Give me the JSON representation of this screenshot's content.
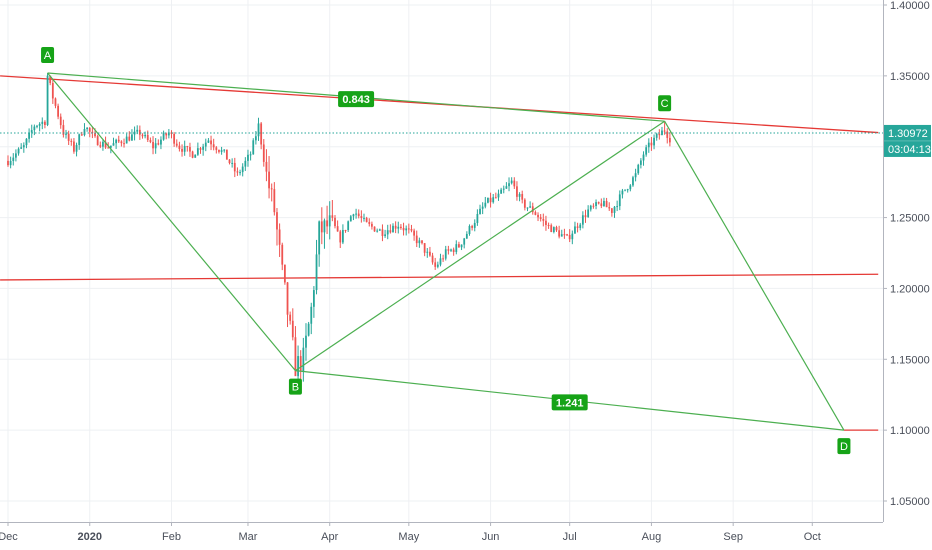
{
  "chart_data": {
    "type": "candlestick",
    "title": "",
    "ylim": [
      1.02,
      1.4
    ],
    "y_ticks": [
      {
        "value": 1.4,
        "label": "1.40000"
      },
      {
        "value": 1.35,
        "label": "1.35000"
      },
      {
        "value": 1.25,
        "label": "1.25000"
      },
      {
        "value": 1.2,
        "label": "1.20000"
      },
      {
        "value": 1.15,
        "label": "1.15000"
      },
      {
        "value": 1.1,
        "label": "1.10000"
      },
      {
        "value": 1.05,
        "label": "1.05000"
      }
    ],
    "x_ticks": [
      {
        "label": "Dec",
        "day": 0
      },
      {
        "label": "2020",
        "day": 31
      },
      {
        "label": "Feb",
        "day": 62
      },
      {
        "label": "Mar",
        "day": 91
      },
      {
        "label": "Apr",
        "day": 122
      },
      {
        "label": "May",
        "day": 152
      },
      {
        "label": "Jun",
        "day": 183
      },
      {
        "label": "Jul",
        "day": 213
      },
      {
        "label": "Aug",
        "day": 244
      },
      {
        "label": "Sep",
        "day": 275
      },
      {
        "label": "Oct",
        "day": 305
      }
    ],
    "last_price": {
      "value": 1.30972,
      "label": "1.30972",
      "countdown": "03:04:13",
      "color": "#26a69a"
    },
    "price_path": [
      {
        "day": 0,
        "price": 1.29
      },
      {
        "day": 6,
        "price": 1.3
      },
      {
        "day": 10,
        "price": 1.315
      },
      {
        "day": 14,
        "price": 1.318
      },
      {
        "day": 15,
        "price": 1.35
      },
      {
        "day": 17,
        "price": 1.335
      },
      {
        "day": 21,
        "price": 1.31
      },
      {
        "day": 25,
        "price": 1.298
      },
      {
        "day": 29,
        "price": 1.315
      },
      {
        "day": 33,
        "price": 1.305
      },
      {
        "day": 38,
        "price": 1.3
      },
      {
        "day": 44,
        "price": 1.305
      },
      {
        "day": 50,
        "price": 1.31
      },
      {
        "day": 55,
        "price": 1.3
      },
      {
        "day": 61,
        "price": 1.31
      },
      {
        "day": 65,
        "price": 1.3
      },
      {
        "day": 70,
        "price": 1.295
      },
      {
        "day": 76,
        "price": 1.305
      },
      {
        "day": 82,
        "price": 1.295
      },
      {
        "day": 87,
        "price": 1.28
      },
      {
        "day": 92,
        "price": 1.295
      },
      {
        "day": 95,
        "price": 1.315
      },
      {
        "day": 98,
        "price": 1.28
      },
      {
        "day": 101,
        "price": 1.255
      },
      {
        "day": 104,
        "price": 1.21
      },
      {
        "day": 107,
        "price": 1.17
      },
      {
        "day": 109,
        "price": 1.145
      },
      {
        "day": 112,
        "price": 1.15
      },
      {
        "day": 115,
        "price": 1.185
      },
      {
        "day": 118,
        "price": 1.24
      },
      {
        "day": 122,
        "price": 1.245
      },
      {
        "day": 126,
        "price": 1.235
      },
      {
        "day": 131,
        "price": 1.255
      },
      {
        "day": 136,
        "price": 1.245
      },
      {
        "day": 142,
        "price": 1.24
      },
      {
        "day": 148,
        "price": 1.245
      },
      {
        "day": 152,
        "price": 1.24
      },
      {
        "day": 157,
        "price": 1.23
      },
      {
        "day": 162,
        "price": 1.215
      },
      {
        "day": 166,
        "price": 1.225
      },
      {
        "day": 171,
        "price": 1.23
      },
      {
        "day": 176,
        "price": 1.245
      },
      {
        "day": 181,
        "price": 1.26
      },
      {
        "day": 186,
        "price": 1.265
      },
      {
        "day": 191,
        "price": 1.275
      },
      {
        "day": 195,
        "price": 1.26
      },
      {
        "day": 199,
        "price": 1.255
      },
      {
        "day": 204,
        "price": 1.245
      },
      {
        "day": 208,
        "price": 1.24
      },
      {
        "day": 212,
        "price": 1.235
      },
      {
        "day": 216,
        "price": 1.245
      },
      {
        "day": 220,
        "price": 1.255
      },
      {
        "day": 225,
        "price": 1.26
      },
      {
        "day": 229,
        "price": 1.255
      },
      {
        "day": 234,
        "price": 1.27
      },
      {
        "day": 238,
        "price": 1.28
      },
      {
        "day": 241,
        "price": 1.295
      },
      {
        "day": 245,
        "price": 1.305
      },
      {
        "day": 249,
        "price": 1.312
      },
      {
        "day": 251,
        "price": 1.306
      }
    ],
    "series": [
      {
        "name": "",
        "type": "pattern",
        "points": [
          {
            "label": "A",
            "day": 15,
            "price": 1.352
          },
          {
            "label": "B",
            "day": 109,
            "price": 1.142
          },
          {
            "label": "C",
            "day": 249,
            "price": 1.318
          },
          {
            "label": "D",
            "day": 317,
            "price": 1.1
          }
        ]
      }
    ],
    "annotations": [
      {
        "text": "0.843",
        "between": [
          "A",
          "C"
        ]
      },
      {
        "text": "1.241",
        "between": [
          "B",
          "D"
        ]
      }
    ],
    "trend_lines": [
      {
        "from": {
          "day": -3,
          "price": 1.35
        },
        "to": {
          "day": 330,
          "price": 1.31
        }
      },
      {
        "from": {
          "day": -3,
          "price": 1.206
        },
        "to": {
          "day": 330,
          "price": 1.21
        }
      },
      {
        "from": {
          "day": 317,
          "price": 1.1
        },
        "to": {
          "day": 330,
          "price": 1.1
        }
      }
    ],
    "grid": true,
    "colors": {
      "up": "#26a69a",
      "down": "#ef5350",
      "pattern": "#4caf50",
      "trend": "#e53935",
      "label_bg": "#16a317"
    }
  }
}
